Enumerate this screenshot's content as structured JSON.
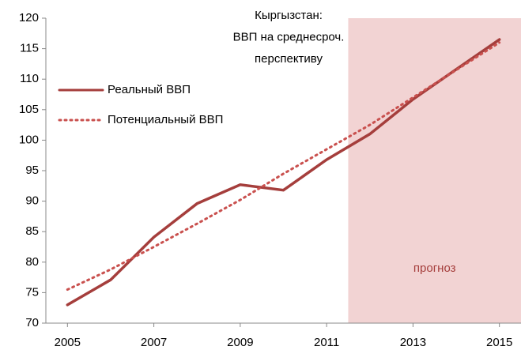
{
  "chart_data": {
    "type": "line",
    "title": [
      "Кыргызстан:",
      "ВВП на среднесроч.",
      "перспективу"
    ],
    "x": [
      2005,
      2006,
      2007,
      2008,
      2009,
      2010,
      2011,
      2012,
      2013,
      2014,
      2015
    ],
    "xlim": [
      2004.5,
      2015.5
    ],
    "xticks": [
      2005,
      2007,
      2009,
      2011,
      2013,
      2015
    ],
    "ylim": [
      70,
      120
    ],
    "yticks": [
      70,
      75,
      80,
      85,
      90,
      95,
      100,
      105,
      110,
      115,
      120
    ],
    "series": [
      {
        "name": "Реальный ВВП",
        "color": "#a53e3c",
        "style": "solid",
        "values": [
          73.0,
          77.1,
          84.1,
          89.6,
          92.7,
          91.8,
          96.8,
          101.0,
          106.7,
          111.6,
          116.5
        ]
      },
      {
        "name": "Потенциальный ВВП",
        "color": "#c9504e",
        "style": "dotted",
        "values": [
          75.5,
          78.8,
          82.5,
          86.3,
          90.2,
          94.5,
          98.5,
          102.5,
          107.0,
          111.5,
          116.0
        ]
      }
    ],
    "forecast": {
      "label": "прогноз",
      "span": [
        2011.5,
        2015.5
      ],
      "color": "#f2d3d3",
      "text_color": "#a53e3c"
    },
    "legend": "upper left"
  }
}
